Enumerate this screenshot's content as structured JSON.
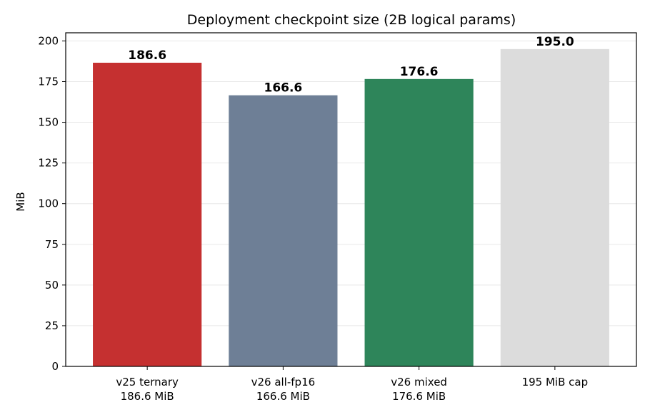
{
  "chart_data": {
    "type": "bar",
    "title": "Deployment checkpoint size (2B logical params)",
    "xlabel": "",
    "ylabel": "MiB",
    "ylim": [
      0,
      205
    ],
    "yticks": [
      0,
      25,
      50,
      75,
      100,
      125,
      150,
      175,
      200
    ],
    "grid": "horizontal",
    "categories": [
      [
        "v25 ternary",
        "186.6 MiB"
      ],
      [
        "v26 all-fp16",
        "166.6 MiB"
      ],
      [
        "v26 mixed",
        "176.6 MiB"
      ],
      [
        "195 MiB cap"
      ]
    ],
    "values": [
      186.6,
      166.6,
      176.6,
      195.0
    ],
    "data_labels": [
      "186.6",
      "166.6",
      "176.6",
      "195.0"
    ],
    "colors": [
      "#c53030",
      "#6e7f96",
      "#2e855a",
      "#dcdcdc"
    ]
  }
}
